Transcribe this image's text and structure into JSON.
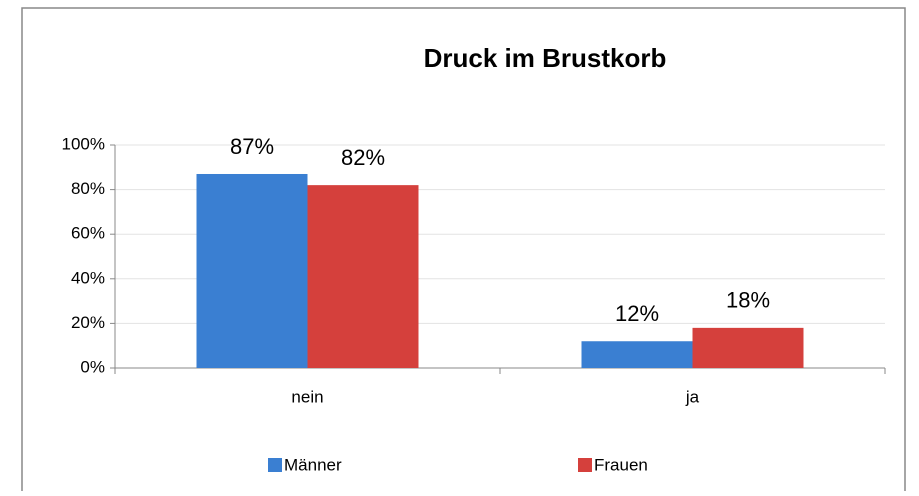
{
  "chart_data": {
    "type": "bar",
    "title": "Druck im Brustkorb",
    "categories": [
      "nein",
      "ja"
    ],
    "series": [
      {
        "name": "Männer",
        "color": "#3a7fd2",
        "values": [
          87,
          12
        ],
        "value_labels": [
          "87%",
          "12%"
        ]
      },
      {
        "name": "Frauen",
        "color": "#d5403c",
        "values": [
          82,
          18
        ],
        "value_labels": [
          "82%",
          "18%"
        ]
      }
    ],
    "ylim": [
      0,
      100
    ],
    "yticks": [
      {
        "value": 0,
        "label": "0%"
      },
      {
        "value": 20,
        "label": "20%"
      },
      {
        "value": 40,
        "label": "40%"
      },
      {
        "value": 60,
        "label": "60%"
      },
      {
        "value": 80,
        "label": "80%"
      },
      {
        "value": 100,
        "label": "100%"
      }
    ],
    "grid": true,
    "legend": "bottom"
  }
}
